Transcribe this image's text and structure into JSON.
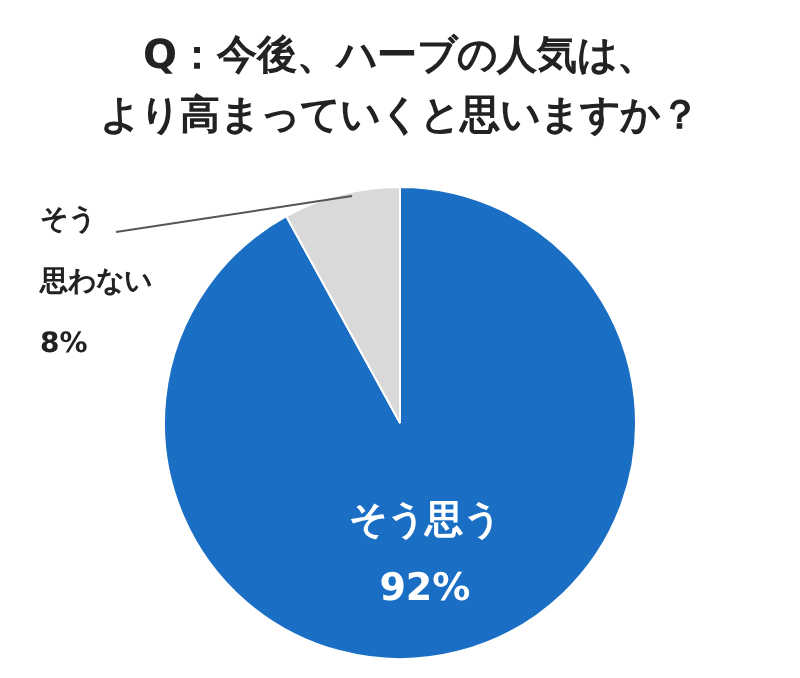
{
  "chart_data": {
    "type": "pie",
    "title": "Q：今後、ハーブの人気は、より高まっていくと思いますか？",
    "categories": [
      "そう思う",
      "そう思わない"
    ],
    "values": [
      92,
      8
    ],
    "colors": [
      "#1a6ec4",
      "#d9d9d9"
    ],
    "value_labels": [
      "92%",
      "8%"
    ]
  }
}
